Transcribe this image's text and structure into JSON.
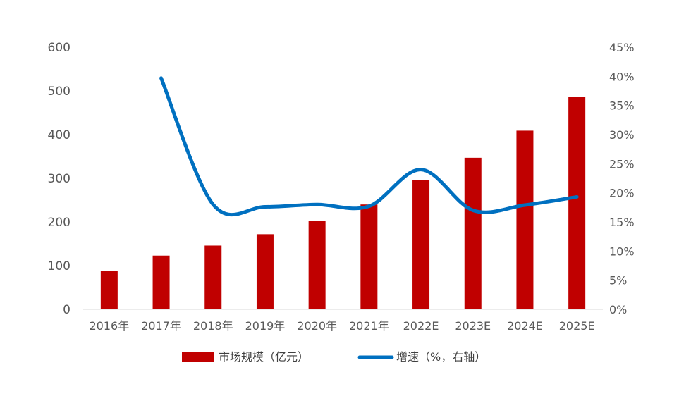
{
  "colors": {
    "bar": "#C00000",
    "line": "#0070C0",
    "tick_text": "#595959",
    "axis_line": "#D9D9D9",
    "legend_text": "#404040"
  },
  "chart_data": {
    "type": "bar",
    "title": "",
    "xlabel": "",
    "ylabel": "",
    "categories": [
      "2016年",
      "2017年",
      "2018年",
      "2019年",
      "2020年",
      "2021年",
      "2022E",
      "2023E",
      "2024E",
      "2025E"
    ],
    "ylim": [
      0,
      600
    ],
    "y2lim": [
      0,
      0.45
    ],
    "yticks": [
      "0",
      "100",
      "200",
      "300",
      "400",
      "500",
      "600"
    ],
    "y2ticks": [
      "0%",
      "5%",
      "10%",
      "15%",
      "20%",
      "25%",
      "30%",
      "35%",
      "40%",
      "45%"
    ],
    "grid": false,
    "legend_position": "bottom",
    "series": [
      {
        "name": "市场规模（亿元）",
        "type": "bar",
        "axis": "left",
        "values": [
          88,
          123,
          146,
          172,
          203,
          240,
          296,
          347,
          409,
          487
        ]
      },
      {
        "name": "增速（%，右轴）",
        "type": "line",
        "axis": "right",
        "values": [
          null,
          0.397,
          0.18,
          0.176,
          0.18,
          0.177,
          0.24,
          0.17,
          0.179,
          0.193
        ]
      }
    ]
  }
}
